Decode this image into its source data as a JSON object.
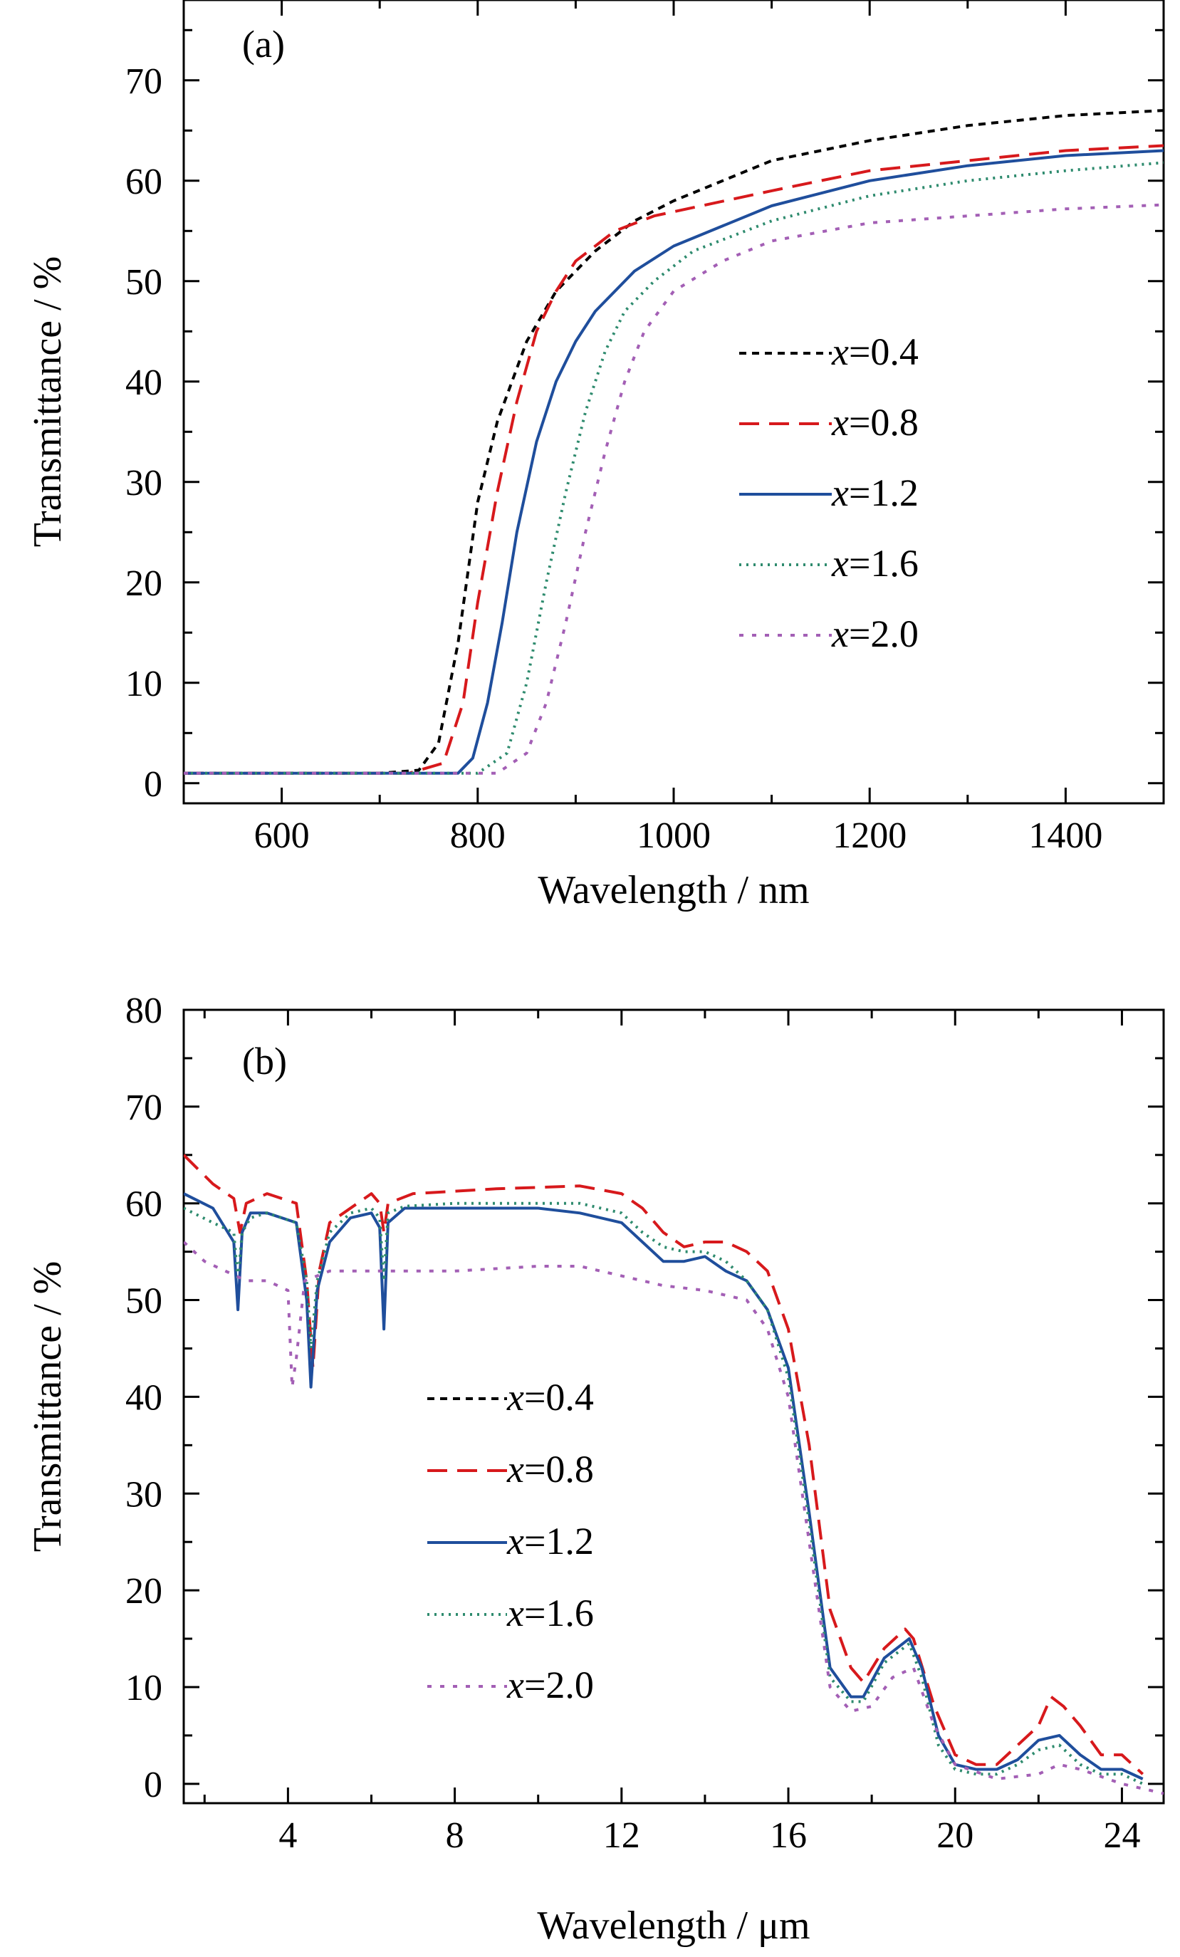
{
  "chart_data": [
    {
      "type": "line",
      "panel_label": "(a)",
      "xlabel": "Wavelength / nm",
      "ylabel": "Transmittance / %",
      "xlim": [
        500,
        1500
      ],
      "ylim": [
        -2,
        78
      ],
      "xticks": [
        600,
        800,
        1000,
        1200,
        1400
      ],
      "yticks": [
        0,
        10,
        20,
        30,
        40,
        50,
        60,
        70
      ],
      "legend_position": "center-right",
      "grid": false,
      "series": [
        {
          "name": "x=0.4",
          "x_prefix": "x",
          "value_text": "=0.4",
          "color": "#000000",
          "dash": "10,8",
          "x": [
            500,
            700,
            740,
            760,
            780,
            800,
            820,
            850,
            880,
            920,
            960,
            1000,
            1100,
            1200,
            1300,
            1400,
            1500
          ],
          "y": [
            1,
            1,
            1.3,
            4,
            14,
            28,
            36,
            44,
            49,
            53,
            56,
            58,
            62,
            64,
            65.5,
            66.5,
            67
          ]
        },
        {
          "name": "x=0.8",
          "x_prefix": "x",
          "value_text": "=0.8",
          "color": "#d7191c",
          "dash": "28,14",
          "x": [
            500,
            730,
            765,
            785,
            800,
            820,
            840,
            860,
            880,
            900,
            940,
            980,
            1100,
            1200,
            1300,
            1400,
            1500
          ],
          "y": [
            1,
            1,
            2,
            8,
            18,
            29,
            38,
            45,
            49,
            52,
            55,
            56.5,
            59,
            61,
            62,
            63,
            63.5
          ]
        },
        {
          "name": "x=1.2",
          "x_prefix": "x",
          "value_text": "=1.2",
          "color": "#1f4e9c",
          "dash": "",
          "x": [
            500,
            780,
            795,
            810,
            825,
            840,
            860,
            880,
            900,
            920,
            960,
            1000,
            1100,
            1200,
            1300,
            1400,
            1500
          ],
          "y": [
            1,
            1,
            2.5,
            8,
            16,
            25,
            34,
            40,
            44,
            47,
            51,
            53.5,
            57.5,
            60,
            61.5,
            62.5,
            63
          ]
        },
        {
          "name": "x=1.6",
          "x_prefix": "x",
          "value_text": "=1.6",
          "color": "#2e8b6e",
          "dash": "3,7",
          "x": [
            500,
            800,
            830,
            850,
            870,
            890,
            910,
            930,
            950,
            980,
            1020,
            1100,
            1200,
            1300,
            1400,
            1500
          ],
          "y": [
            1,
            1,
            3,
            10,
            20,
            29,
            37,
            43,
            47,
            50,
            53,
            56,
            58.5,
            60,
            61,
            61.8
          ]
        },
        {
          "name": "x=2.0",
          "x_prefix": "x",
          "value_text": "=2.0",
          "color": "#a35fb5",
          "dash": "6,12",
          "x": [
            500,
            820,
            850,
            870,
            890,
            910,
            930,
            950,
            970,
            1000,
            1050,
            1100,
            1200,
            1300,
            1400,
            1500
          ],
          "y": [
            1,
            1,
            3,
            8,
            16,
            25,
            33,
            40,
            45,
            49,
            52,
            54,
            55.8,
            56.5,
            57.2,
            57.6
          ]
        }
      ]
    },
    {
      "type": "line",
      "panel_label": "(b)",
      "xlabel": "Wavelength / μm",
      "ylabel": "Transmittance / %",
      "xlim": [
        1.5,
        25
      ],
      "ylim": [
        -2,
        80
      ],
      "xticks": [
        4,
        8,
        12,
        16,
        20,
        24
      ],
      "yticks": [
        0,
        10,
        20,
        30,
        40,
        50,
        60,
        70,
        80
      ],
      "legend_position": "center-left",
      "grid": false,
      "series": [
        {
          "name": "x=0.4",
          "x_prefix": "x",
          "value_text": "=0.4",
          "color": "#000000",
          "dash": "10,8",
          "x": [],
          "y": []
        },
        {
          "name": "x=0.8",
          "x_prefix": "x",
          "value_text": "=0.8",
          "color": "#d7191c",
          "dash": "28,14",
          "x": [
            1.5,
            2.2,
            2.7,
            2.85,
            3.0,
            3.5,
            4.2,
            4.45,
            4.6,
            4.75,
            5.0,
            6.0,
            6.2,
            6.3,
            6.4,
            7.0,
            9.0,
            11.0,
            12.0,
            12.5,
            13.0,
            13.5,
            14.0,
            14.5,
            15.0,
            15.5,
            16.0,
            16.5,
            17.0,
            17.5,
            17.8,
            18.3,
            18.8,
            19.0,
            19.5,
            20.0,
            20.5,
            21.0,
            21.5,
            22.0,
            22.3,
            22.6,
            23.0,
            23.5,
            24.0,
            24.5
          ],
          "y": [
            65,
            62,
            60.5,
            57,
            60,
            61,
            60,
            52,
            43,
            53,
            58,
            61,
            60,
            57,
            60,
            61,
            61.5,
            61.8,
            61,
            59.5,
            57,
            55.5,
            56,
            56,
            55,
            53,
            47,
            35,
            18,
            12,
            10.5,
            14,
            16,
            15,
            8,
            3,
            2,
            2,
            4,
            6,
            9,
            8,
            6,
            3,
            3,
            1
          ]
        },
        {
          "name": "x=1.2",
          "x_prefix": "x",
          "value_text": "=1.2",
          "color": "#1f4e9c",
          "dash": "",
          "x": [
            1.5,
            2.2,
            2.7,
            2.8,
            2.9,
            3.1,
            3.5,
            4.2,
            4.45,
            4.55,
            4.7,
            5.0,
            5.5,
            6.0,
            6.2,
            6.3,
            6.4,
            6.8,
            8.0,
            10.0,
            11.0,
            12.0,
            12.5,
            13.0,
            13.5,
            14.0,
            14.5,
            15.0,
            15.5,
            16.0,
            16.5,
            17.0,
            17.5,
            17.8,
            18.3,
            18.9,
            19.2,
            19.6,
            20.0,
            20.5,
            21.0,
            21.5,
            22.0,
            22.5,
            23.0,
            23.5,
            24.0,
            24.5
          ],
          "y": [
            61,
            59.5,
            56,
            49,
            57,
            59,
            59,
            58,
            50,
            41,
            51,
            56,
            58.5,
            59,
            57.5,
            47,
            58,
            59.5,
            59.5,
            59.5,
            59,
            58,
            56,
            54,
            54,
            54.5,
            53,
            52,
            49,
            43,
            28,
            12,
            9,
            9,
            13,
            15,
            12,
            5,
            2,
            1.5,
            1.5,
            2.5,
            4.5,
            5,
            3,
            1.5,
            1.5,
            0.5
          ]
        },
        {
          "name": "x=1.6",
          "x_prefix": "x",
          "value_text": "=1.6",
          "color": "#2e8b6e",
          "dash": "3,7",
          "x": [
            1.5,
            2.2,
            2.7,
            2.8,
            2.9,
            3.1,
            3.5,
            4.2,
            4.45,
            4.55,
            4.7,
            5.0,
            5.5,
            6.0,
            6.2,
            6.3,
            6.4,
            6.8,
            8.0,
            10.0,
            11.0,
            12.0,
            12.5,
            13.0,
            13.5,
            14.0,
            14.5,
            15.0,
            15.5,
            16.0,
            16.5,
            17.0,
            17.5,
            17.8,
            18.3,
            18.9,
            19.2,
            19.6,
            20.0,
            20.5,
            21.0,
            21.5,
            22.0,
            22.5,
            23.0,
            23.5,
            24.0,
            24.5
          ],
          "y": [
            59.5,
            58,
            57,
            52,
            57,
            58.5,
            59,
            58,
            52,
            45,
            52,
            57,
            59,
            59.5,
            58.5,
            52,
            59,
            59.7,
            60,
            60,
            60,
            59,
            57,
            55.5,
            55,
            55,
            54,
            52,
            49,
            42,
            27,
            11,
            8.5,
            8.5,
            12.5,
            14.5,
            11,
            4,
            1.5,
            1,
            1,
            2,
            3.5,
            4,
            2,
            1,
            1,
            0
          ]
        },
        {
          "name": "x=2.0",
          "x_prefix": "x",
          "value_text": "=2.0",
          "color": "#a35fb5",
          "dash": "6,12",
          "x": [
            1.5,
            2.0,
            2.5,
            3.0,
            3.5,
            4.0,
            4.1,
            4.2,
            4.4,
            5.0,
            6.0,
            8.0,
            10.0,
            11.0,
            12.0,
            13.0,
            14.0,
            15.0,
            15.5,
            16.0,
            16.5,
            17.0,
            17.5,
            18.0,
            18.5,
            19.0,
            19.5,
            20.0,
            21.0,
            22.0,
            22.5,
            23.0,
            24.0,
            25.0
          ],
          "y": [
            56,
            54,
            53,
            52,
            52,
            51,
            41,
            44,
            52,
            53,
            53,
            53,
            53.5,
            53.5,
            52.5,
            51.5,
            51,
            50,
            47,
            40,
            25,
            10,
            7.5,
            8,
            11,
            12,
            6,
            2,
            0.5,
            1,
            2,
            1.5,
            0,
            -1
          ]
        }
      ]
    }
  ]
}
